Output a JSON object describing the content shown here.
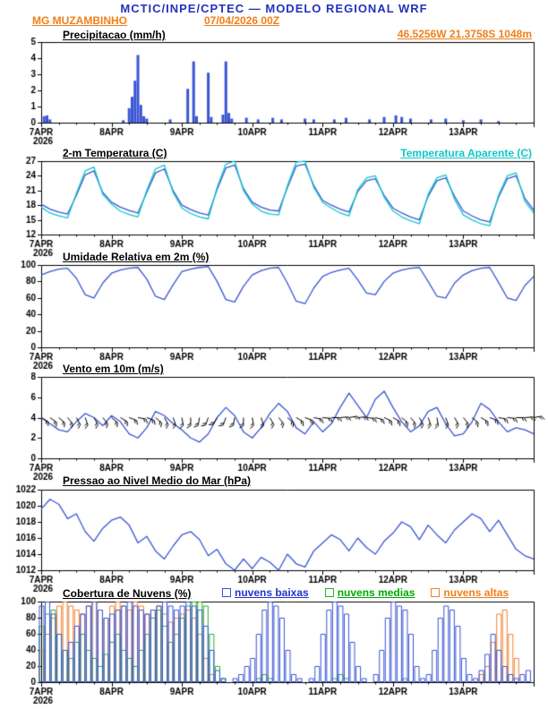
{
  "header": {
    "title": "MCTIC/INPE/CPTEC — MODELO REGIONAL WRF",
    "station": "MG MUZAMBINHO",
    "run": "07/04/2026 00Z",
    "coords": "46.5256W 21.3758S 1048m"
  },
  "colors": {
    "title_blue": "#2233bb",
    "orange_text": "#ef7f1a",
    "line_blue": "#3a55d4",
    "cyan": "#10c8c8",
    "green": "#2fae2f",
    "orange_bar": "#f08030",
    "axis_black": "#000000"
  },
  "x_axis": {
    "labels": [
      "7APR",
      "8APR",
      "9APR",
      "10APR",
      "11APR",
      "12APR",
      "13APR"
    ],
    "year_label": "2026",
    "hours_total": 168
  },
  "chart_data": [
    {
      "type": "bar",
      "title": "Precipitacao (mm/h)",
      "ylabel": "mm/h",
      "ylim": [
        0,
        5
      ],
      "yticks": [
        0,
        1,
        2,
        3,
        4,
        5
      ],
      "bar_color": "#3a55d4",
      "points": [
        [
          1,
          0.4
        ],
        [
          2,
          0.45
        ],
        [
          3,
          0.2
        ],
        [
          28,
          0.15
        ],
        [
          30,
          0.9
        ],
        [
          31,
          1.6
        ],
        [
          32,
          2.6
        ],
        [
          33,
          4.2
        ],
        [
          34,
          1.1
        ],
        [
          35,
          0.4
        ],
        [
          36,
          0.25
        ],
        [
          44,
          0.2
        ],
        [
          50,
          2.1
        ],
        [
          52,
          3.8
        ],
        [
          53,
          0.4
        ],
        [
          57,
          3.1
        ],
        [
          58,
          0.35
        ],
        [
          62,
          0.5
        ],
        [
          63,
          3.8
        ],
        [
          64,
          0.6
        ],
        [
          65,
          0.25
        ],
        [
          70,
          0.3
        ],
        [
          74,
          0.2
        ],
        [
          79,
          0.3
        ],
        [
          82,
          0.2
        ],
        [
          90,
          0.25
        ],
        [
          93,
          0.2
        ],
        [
          100,
          0.2
        ],
        [
          104,
          0.3
        ],
        [
          112,
          0.2
        ],
        [
          117,
          0.35
        ],
        [
          121,
          0.45
        ],
        [
          123,
          0.35
        ],
        [
          126,
          0.25
        ],
        [
          133,
          0.2
        ],
        [
          138,
          0.25
        ],
        [
          144,
          0.15
        ],
        [
          150,
          0.2
        ],
        [
          156,
          0.1
        ]
      ]
    },
    {
      "type": "line",
      "title": "2-m Temperatura (C)",
      "ylim": [
        12,
        27
      ],
      "yticks": [
        12,
        15,
        18,
        21,
        24,
        27
      ],
      "step_hours": 3,
      "series": [
        {
          "name": "2-m Temperatura (C)",
          "color": "#3a55d4",
          "values": [
            18.2,
            17.2,
            16.6,
            16.2,
            20.0,
            24.2,
            25.0,
            20.6,
            18.6,
            17.6,
            16.9,
            16.4,
            20.6,
            24.6,
            25.4,
            21.0,
            18.0,
            17.1,
            16.4,
            16.0,
            21.2,
            25.6,
            26.2,
            21.4,
            18.6,
            17.6,
            17.0,
            16.8,
            21.6,
            26.0,
            26.4,
            22.0,
            19.0,
            18.0,
            17.2,
            16.6,
            20.8,
            23.0,
            23.4,
            20.0,
            17.4,
            16.4,
            15.6,
            15.0,
            19.8,
            23.0,
            23.6,
            19.8,
            16.8,
            15.8,
            15.0,
            14.6,
            19.6,
            23.4,
            24.0,
            19.4,
            17.0
          ]
        },
        {
          "name": "Temperatura Aparente (C)",
          "color": "#10c8c8",
          "values": [
            17.6,
            16.4,
            15.8,
            15.4,
            20.4,
            25.0,
            25.8,
            20.2,
            18.2,
            16.8,
            16.1,
            15.6,
            21.0,
            25.4,
            26.2,
            20.6,
            17.4,
            16.3,
            15.6,
            15.2,
            21.6,
            26.4,
            27.0,
            21.0,
            18.2,
            16.8,
            16.2,
            16.0,
            22.0,
            26.8,
            27.0,
            21.6,
            18.6,
            17.4,
            16.4,
            15.8,
            21.2,
            23.6,
            24.0,
            19.6,
            16.8,
            15.6,
            14.8,
            14.2,
            20.2,
            23.6,
            24.2,
            19.2,
            16.0,
            15.0,
            14.2,
            13.8,
            20.0,
            24.0,
            24.6,
            18.8,
            16.4
          ]
        }
      ]
    },
    {
      "type": "line",
      "title": "Umidade Relativa em 2m (%)",
      "ylim": [
        0,
        100
      ],
      "yticks": [
        0,
        20,
        40,
        60,
        80,
        100
      ],
      "step_hours": 3,
      "series": [
        {
          "name": "Umidade Relativa em 2m (%)",
          "color": "#3a55d4",
          "values": [
            88,
            92,
            95,
            96,
            84,
            64,
            60,
            78,
            90,
            94,
            96,
            97,
            83,
            62,
            58,
            76,
            92,
            95,
            97,
            98,
            80,
            58,
            55,
            74,
            88,
            93,
            96,
            97,
            78,
            56,
            53,
            72,
            86,
            91,
            94,
            96,
            82,
            66,
            64,
            80,
            90,
            94,
            96,
            97,
            80,
            62,
            60,
            78,
            88,
            93,
            96,
            97,
            79,
            60,
            57,
            75,
            86
          ]
        }
      ]
    },
    {
      "type": "line",
      "title": "Vento em 10m (m/s)",
      "ylim": [
        0,
        8
      ],
      "yticks": [
        0,
        2,
        4,
        6,
        8
      ],
      "step_hours": 3,
      "barb_level": 4,
      "barb_dirs": [
        120,
        125,
        130,
        140,
        150,
        160,
        150,
        140,
        130,
        120,
        110,
        100,
        110,
        130,
        150,
        160,
        170,
        180,
        190,
        200,
        210,
        200,
        190,
        180,
        170,
        160,
        150,
        140,
        130,
        120,
        110,
        100,
        95,
        90,
        85,
        80,
        85,
        95,
        105,
        115,
        120,
        130,
        140,
        150,
        160,
        170,
        160,
        150,
        140,
        130,
        120,
        110,
        100,
        95,
        90,
        85,
        80
      ],
      "series": [
        {
          "name": "Vento em 10m (m/s)",
          "color": "#3a55d4",
          "values": [
            4.0,
            3.4,
            2.8,
            2.6,
            3.6,
            4.4,
            4.0,
            3.2,
            4.2,
            3.6,
            2.4,
            2.0,
            3.0,
            4.6,
            4.2,
            3.4,
            2.8,
            2.0,
            1.6,
            2.4,
            4.0,
            5.0,
            4.2,
            2.6,
            2.0,
            3.0,
            4.4,
            5.4,
            4.6,
            3.0,
            2.4,
            3.6,
            2.6,
            3.4,
            5.0,
            6.4,
            5.2,
            4.0,
            5.8,
            6.6,
            5.0,
            3.6,
            2.6,
            3.2,
            4.6,
            5.0,
            3.4,
            2.2,
            2.4,
            3.6,
            5.4,
            4.8,
            3.6,
            2.6,
            3.0,
            2.8,
            2.4
          ]
        }
      ]
    },
    {
      "type": "line",
      "title": "Pressao ao Nivel Medio do Mar (hPa)",
      "ylim": [
        1012,
        1022
      ],
      "yticks": [
        1012,
        1014,
        1016,
        1018,
        1020,
        1022
      ],
      "step_hours": 3,
      "series": [
        {
          "name": "Pressao ao Nivel Medio do Mar (hPa)",
          "color": "#3a55d4",
          "values": [
            1019.6,
            1020.8,
            1020.2,
            1018.4,
            1019.0,
            1016.8,
            1015.6,
            1017.2,
            1018.2,
            1018.6,
            1017.6,
            1015.4,
            1016.2,
            1014.4,
            1013.4,
            1015.0,
            1016.4,
            1016.8,
            1015.8,
            1013.8,
            1014.6,
            1012.8,
            1012.0,
            1013.4,
            1012.2,
            1013.6,
            1013.0,
            1012.0,
            1014.0,
            1012.8,
            1012.4,
            1014.4,
            1015.4,
            1016.4,
            1015.8,
            1014.4,
            1016.0,
            1014.8,
            1014.0,
            1015.6,
            1016.6,
            1018.0,
            1017.4,
            1015.8,
            1017.6,
            1016.4,
            1015.4,
            1017.0,
            1018.0,
            1019.0,
            1018.4,
            1016.8,
            1018.2,
            1016.4,
            1014.6,
            1013.8,
            1013.4
          ]
        }
      ]
    },
    {
      "type": "bar-multi",
      "title": "Cobertura de Nuvens (%)",
      "ylim": [
        0,
        100
      ],
      "yticks": [
        0,
        20,
        40,
        60,
        80,
        100
      ],
      "step_hours": 2,
      "series": [
        {
          "label": "nuvens baixas",
          "color": "#3a55d4",
          "values": [
            95,
            100,
            85,
            60,
            40,
            50,
            70,
            85,
            95,
            100,
            90,
            80,
            85,
            90,
            95,
            100,
            95,
            90,
            85,
            90,
            95,
            100,
            95,
            90,
            95,
            100,
            95,
            90,
            70,
            40,
            15,
            5,
            0,
            5,
            10,
            20,
            30,
            60,
            90,
            100,
            95,
            80,
            40,
            10,
            5,
            0,
            5,
            20,
            60,
            90,
            100,
            95,
            85,
            50,
            20,
            5,
            0,
            10,
            40,
            80,
            100,
            95,
            90,
            60,
            20,
            5,
            10,
            40,
            80,
            95,
            90,
            70,
            30,
            10,
            5,
            15,
            35,
            60,
            40,
            20,
            10,
            5,
            10,
            15
          ]
        },
        {
          "label": "nuvens medias",
          "color": "#2fae2f",
          "values": [
            70,
            85,
            90,
            60,
            40,
            30,
            50,
            60,
            40,
            30,
            20,
            35,
            50,
            60,
            40,
            30,
            20,
            40,
            60,
            80,
            90,
            70,
            50,
            60,
            80,
            95,
            100,
            100,
            95,
            60,
            20,
            5,
            0,
            0,
            0,
            0,
            0,
            5,
            10,
            5,
            0,
            0,
            0,
            0,
            0,
            0,
            0,
            0,
            0,
            0,
            5,
            10,
            5,
            0,
            0,
            0,
            0,
            0,
            0,
            0,
            0,
            0,
            5,
            0,
            0,
            0,
            0,
            0,
            0,
            0,
            0,
            0,
            0,
            0,
            0,
            0,
            0,
            0,
            0,
            0,
            0,
            0,
            0,
            0
          ]
        },
        {
          "label": "nuvens altas",
          "color": "#f08030",
          "values": [
            40,
            60,
            80,
            95,
            100,
            95,
            90,
            85,
            95,
            100,
            90,
            80,
            95,
            100,
            95,
            90,
            100,
            95,
            85,
            90,
            95,
            85,
            75,
            80,
            85,
            90,
            80,
            60,
            30,
            10,
            0,
            0,
            0,
            0,
            0,
            0,
            0,
            0,
            0,
            0,
            0,
            0,
            0,
            0,
            0,
            0,
            0,
            0,
            0,
            0,
            0,
            0,
            0,
            0,
            0,
            0,
            0,
            0,
            0,
            0,
            0,
            0,
            0,
            0,
            0,
            0,
            0,
            0,
            0,
            0,
            0,
            0,
            0,
            0,
            0,
            10,
            20,
            50,
            85,
            90,
            60,
            30,
            0,
            0
          ]
        }
      ]
    }
  ]
}
